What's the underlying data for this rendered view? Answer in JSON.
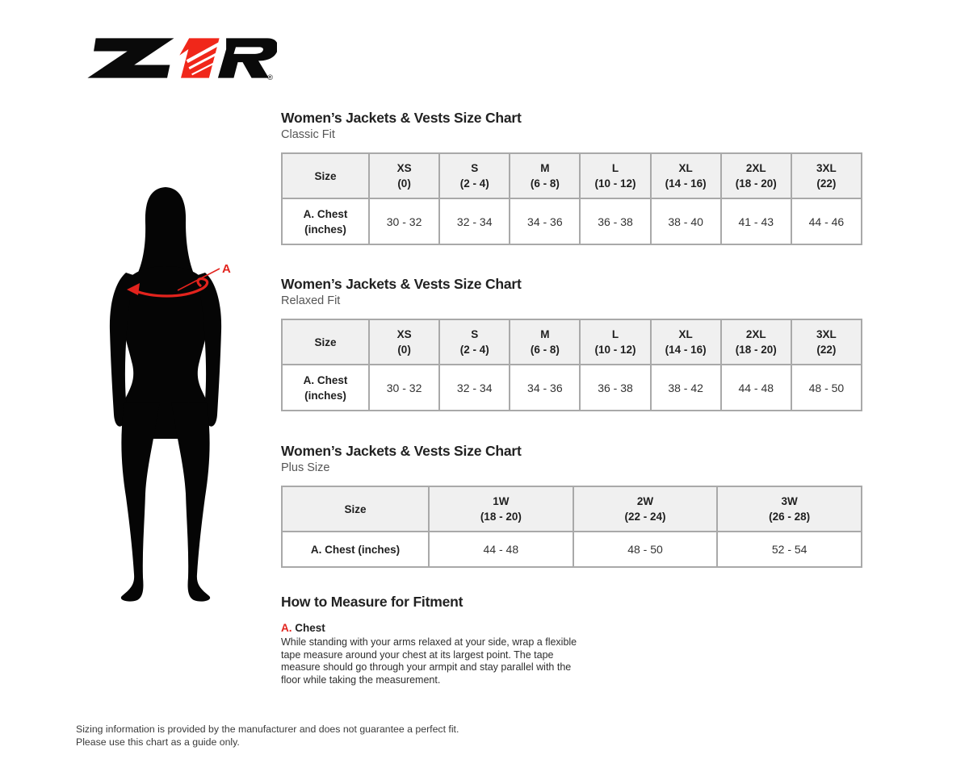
{
  "page": {
    "background": "#ffffff"
  },
  "logo": {
    "brand": "Z1R",
    "registered": "®"
  },
  "colors": {
    "logo_red": "#f0271a",
    "accent_red": "#e2231d",
    "table_header_bg": "#f0f0f0",
    "table_border": "#a9a9a9",
    "title_text": "#222222",
    "subtitle_text": "#555555"
  },
  "figure": {
    "annotation_label": "A"
  },
  "sections": [
    {
      "title": "Women’s Jackets & Vests Size Chart",
      "subtitle": "Classic Fit",
      "table": {
        "header": [
          [
            "Size"
          ],
          [
            "XS",
            "(0)"
          ],
          [
            "S",
            "(2 - 4)"
          ],
          [
            "M",
            "(6 - 8)"
          ],
          [
            "L",
            "(10 - 12)"
          ],
          [
            "XL",
            "(14 - 16)"
          ],
          [
            "2XL",
            "(18 - 20)"
          ],
          [
            "3XL",
            "(22)"
          ]
        ],
        "rows": [
          [
            [
              "A. Chest",
              "(inches)"
            ],
            [
              "30 - 32"
            ],
            [
              "32 - 34"
            ],
            [
              "34 - 36"
            ],
            [
              "36 - 38"
            ],
            [
              "38 - 40"
            ],
            [
              "41 - 43"
            ],
            [
              "44 - 46"
            ]
          ]
        ]
      }
    },
    {
      "title": "Women’s Jackets & Vests Size Chart",
      "subtitle": "Relaxed Fit",
      "table": {
        "header": [
          [
            "Size"
          ],
          [
            "XS",
            "(0)"
          ],
          [
            "S",
            "(2 - 4)"
          ],
          [
            "M",
            "(6 - 8)"
          ],
          [
            "L",
            "(10 - 12)"
          ],
          [
            "XL",
            "(14 - 16)"
          ],
          [
            "2XL",
            "(18 - 20)"
          ],
          [
            "3XL",
            "(22)"
          ]
        ],
        "rows": [
          [
            [
              "A. Chest",
              "(inches)"
            ],
            [
              "30 - 32"
            ],
            [
              "32 - 34"
            ],
            [
              "34 - 36"
            ],
            [
              "36 - 38"
            ],
            [
              "38 - 42"
            ],
            [
              "44 - 48"
            ],
            [
              "48 - 50"
            ]
          ]
        ]
      }
    },
    {
      "title": "Women’s Jackets & Vests Size Chart",
      "subtitle": "Plus Size",
      "table": {
        "header": [
          [
            "Size"
          ],
          [
            "1W",
            "(18 - 20)"
          ],
          [
            "2W",
            "(22 - 24)"
          ],
          [
            "3W",
            "(26 - 28)"
          ]
        ],
        "rows": [
          [
            [
              "A. Chest (inches)"
            ],
            [
              "44 - 48"
            ],
            [
              "48 - 50"
            ],
            [
              "52 - 54"
            ]
          ]
        ]
      }
    }
  ],
  "measure": {
    "title": "How to Measure for Fitment",
    "items": [
      {
        "key": "A.",
        "label": "Chest",
        "text": "While standing with your arms relaxed at your side, wrap a flexible tape measure around your chest at its largest point. The tape measure should go through your armpit and stay parallel with the floor while taking the measurement."
      }
    ]
  },
  "footer": {
    "line1": "Sizing information is provided by the manufacturer and does not guarantee a perfect fit.",
    "line2": "Please use this chart as a guide only."
  }
}
